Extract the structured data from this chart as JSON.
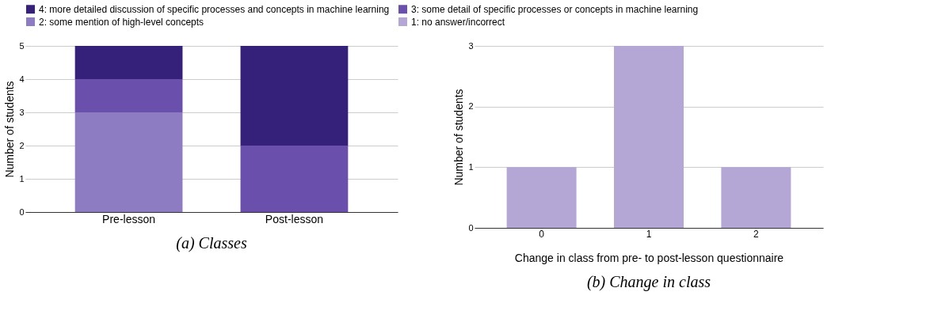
{
  "chart_data": [
    {
      "type": "bar",
      "title": "(a) Classes",
      "ylabel": "Number of students",
      "categories": [
        "Pre-lesson",
        "Post-lesson"
      ],
      "stacked": true,
      "series": [
        {
          "name": "1: no answer/incorrect",
          "color": "#b4a7d6",
          "values": [
            0,
            0
          ]
        },
        {
          "name": "2: some mention of high-level concepts",
          "color": "#8e7cc3",
          "values": [
            3,
            0
          ]
        },
        {
          "name": "3: some detail of specific processes or concepts in machine learning",
          "color": "#6a4fad",
          "values": [
            1,
            2
          ]
        },
        {
          "name": "4: more detailed discussion of specific processes and concepts in machine learning",
          "color": "#35207a",
          "values": [
            1,
            3
          ]
        }
      ],
      "ylim": [
        0,
        5
      ],
      "yticks": [
        0,
        1,
        2,
        3,
        4,
        5
      ],
      "grid": "y",
      "legend": "top"
    },
    {
      "type": "bar",
      "title": "(b) Change in class",
      "xlabel": "Change in class from pre- to post-lesson questionnaire",
      "ylabel": "Number of students",
      "categories": [
        "0",
        "1",
        "2"
      ],
      "series": [
        {
          "color": "#b4a7d6",
          "values": [
            1,
            3,
            1
          ]
        }
      ],
      "ylim": [
        0,
        3
      ],
      "yticks": [
        0,
        1,
        2,
        3
      ],
      "grid": "y"
    }
  ]
}
